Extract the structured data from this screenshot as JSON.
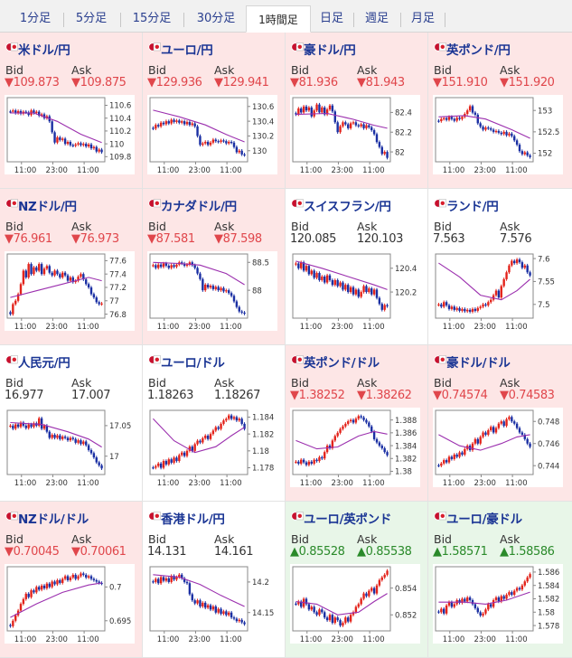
{
  "tabs": [
    {
      "label": "1分足",
      "active": false
    },
    {
      "label": "5分足",
      "active": false
    },
    {
      "label": "15分足",
      "active": false
    },
    {
      "label": "30分足",
      "active": false
    },
    {
      "label": "1時間足",
      "active": true
    },
    {
      "label": "日足",
      "active": false
    },
    {
      "label": "週足",
      "active": false
    },
    {
      "label": "月足",
      "active": false
    }
  ],
  "labels": {
    "bid": "Bid",
    "ask": "Ask"
  },
  "x_ticks": [
    "11:00",
    "23:00",
    "11:00"
  ],
  "cells": [
    {
      "pair": "米ドル/円",
      "flag": "us-jp-flag-icon",
      "direction": "down",
      "bid": "▼109.873",
      "ask": "▼109.875",
      "y_ticks": [
        "110.6",
        "110.4",
        "110.2",
        "110",
        "109.8"
      ],
      "ylim": [
        109.72,
        110.72
      ],
      "close": [
        110.5,
        110.52,
        110.48,
        110.51,
        110.47,
        110.5,
        110.49,
        110.45,
        110.52,
        110.48,
        110.5,
        110.44,
        110.46,
        110.4,
        110.43,
        110.35,
        110.18,
        110.02,
        110.1,
        110.06,
        110.08,
        110.0,
        110.03,
        109.98,
        109.97,
        109.99,
        110.01,
        109.98,
        110.0,
        109.96,
        109.99,
        109.93,
        109.95,
        109.88,
        109.91,
        109.87
      ],
      "ma": [
        [
          0,
          110.48
        ],
        [
          9,
          110.48
        ],
        [
          18,
          110.35
        ],
        [
          27,
          110.15
        ],
        [
          35,
          110.02
        ]
      ]
    },
    {
      "pair": "ユーロ/円",
      "flag": "eu-jp-flag-icon",
      "direction": "down",
      "bid": "▼129.936",
      "ask": "▼129.941",
      "y_ticks": [
        "130.6",
        "130.4",
        "130.2",
        "130"
      ],
      "ylim": [
        129.85,
        130.72
      ],
      "close": [
        130.3,
        130.35,
        130.33,
        130.38,
        130.36,
        130.4,
        130.37,
        130.42,
        130.39,
        130.41,
        130.38,
        130.4,
        130.36,
        130.39,
        130.35,
        130.37,
        130.33,
        130.2,
        130.08,
        130.1,
        130.12,
        130.08,
        130.11,
        130.15,
        130.13,
        130.12,
        130.14,
        130.13,
        130.1,
        130.12,
        130.11,
        130.05,
        129.98,
        130.0,
        129.95,
        129.94
      ],
      "ma": [
        [
          0,
          130.55
        ],
        [
          10,
          130.46
        ],
        [
          20,
          130.35
        ],
        [
          28,
          130.22
        ],
        [
          35,
          130.12
        ]
      ]
    },
    {
      "pair": "豪ドル/円",
      "flag": "au-jp-flag-icon",
      "direction": "down",
      "bid": "▼81.936",
      "ask": "▼81.943",
      "y_ticks": [
        "82.4",
        "82.2",
        "82"
      ],
      "ylim": [
        81.9,
        82.55
      ],
      "close": [
        82.38,
        82.44,
        82.4,
        82.46,
        82.42,
        82.45,
        82.36,
        82.42,
        82.48,
        82.4,
        82.45,
        82.38,
        82.43,
        82.47,
        82.41,
        82.3,
        82.2,
        82.26,
        82.3,
        82.28,
        82.24,
        82.29,
        82.3,
        82.27,
        82.26,
        82.28,
        82.24,
        82.27,
        82.25,
        82.22,
        82.18,
        82.1,
        82.05,
        81.98,
        82.0,
        81.94
      ],
      "ma": [
        [
          0,
          82.38
        ],
        [
          12,
          82.39
        ],
        [
          22,
          82.33
        ],
        [
          30,
          82.27
        ],
        [
          35,
          82.24
        ]
      ]
    },
    {
      "pair": "英ポンド/円",
      "flag": "gb-jp-flag-icon",
      "direction": "down",
      "bid": "▼151.910",
      "ask": "▼151.920",
      "y_ticks": [
        "153",
        "152.5",
        "152"
      ],
      "ylim": [
        151.8,
        153.3
      ],
      "close": [
        152.75,
        152.8,
        152.82,
        152.78,
        152.85,
        152.8,
        152.76,
        152.83,
        152.8,
        152.85,
        152.92,
        153.0,
        153.1,
        152.95,
        152.9,
        152.7,
        152.62,
        152.55,
        152.6,
        152.58,
        152.55,
        152.5,
        152.52,
        152.48,
        152.45,
        152.5,
        152.42,
        152.46,
        152.4,
        152.3,
        152.2,
        152.05,
        151.98,
        152.02,
        151.95,
        151.91
      ],
      "ma": [
        [
          0,
          152.85
        ],
        [
          10,
          152.88
        ],
        [
          18,
          152.8
        ],
        [
          28,
          152.55
        ],
        [
          35,
          152.35
        ]
      ]
    },
    {
      "pair": "NZドル/円",
      "flag": "nz-jp-flag-icon",
      "direction": "down",
      "bid": "▼76.961",
      "ask": "▼76.973",
      "y_ticks": [
        "77.6",
        "77.4",
        "77.2",
        "77",
        "76.8"
      ],
      "ylim": [
        76.74,
        77.7
      ],
      "close": [
        76.8,
        76.95,
        77.0,
        77.1,
        77.25,
        77.45,
        77.35,
        77.55,
        77.4,
        77.5,
        77.45,
        77.55,
        77.4,
        77.48,
        77.52,
        77.42,
        77.38,
        77.45,
        77.4,
        77.35,
        77.42,
        77.38,
        77.3,
        77.35,
        77.28,
        77.3,
        77.36,
        77.4,
        77.32,
        77.25,
        77.2,
        77.1,
        77.05,
        76.98,
        76.95,
        76.96
      ],
      "ma": [
        [
          0,
          77.05
        ],
        [
          10,
          77.15
        ],
        [
          20,
          77.25
        ],
        [
          30,
          77.35
        ],
        [
          35,
          77.3
        ]
      ]
    },
    {
      "pair": "カナダドル/円",
      "flag": "ca-jp-flag-icon",
      "direction": "down",
      "bid": "▼87.581",
      "ask": "▼87.598",
      "y_ticks": [
        "88.5",
        "88"
      ],
      "ylim": [
        87.5,
        88.65
      ],
      "close": [
        88.45,
        88.4,
        88.46,
        88.42,
        88.48,
        88.44,
        88.4,
        88.45,
        88.42,
        88.46,
        88.5,
        88.48,
        88.44,
        88.46,
        88.5,
        88.45,
        88.4,
        88.3,
        88.2,
        88.0,
        88.1,
        88.05,
        88.08,
        88.02,
        88.06,
        88.0,
        88.04,
        87.98,
        88.0,
        87.95,
        87.9,
        87.8,
        87.7,
        87.62,
        87.6,
        87.58
      ],
      "ma": [
        [
          0,
          88.5
        ],
        [
          10,
          88.48
        ],
        [
          18,
          88.45
        ],
        [
          28,
          88.3
        ],
        [
          35,
          88.1
        ]
      ]
    },
    {
      "pair": "スイスフラン/円",
      "flag": "ch-jp-flag-icon",
      "direction": "flat",
      "bid": "120.085",
      "ask": "120.103",
      "y_ticks": [
        "120.4",
        "120.2"
      ],
      "ylim": [
        119.98,
        120.52
      ],
      "close": [
        120.44,
        120.4,
        120.45,
        120.38,
        120.42,
        120.35,
        120.38,
        120.32,
        120.36,
        120.3,
        120.33,
        120.28,
        120.34,
        120.3,
        120.26,
        120.3,
        120.25,
        120.28,
        120.22,
        120.26,
        120.2,
        120.24,
        120.18,
        120.22,
        120.16,
        120.2,
        120.25,
        120.2,
        120.23,
        120.18,
        120.22,
        120.15,
        120.1,
        120.05,
        120.09,
        120.08
      ],
      "ma": [
        [
          0,
          120.46
        ],
        [
          10,
          120.4
        ],
        [
          20,
          120.33
        ],
        [
          30,
          120.26
        ],
        [
          35,
          120.22
        ]
      ]
    },
    {
      "pair": "ランド/円",
      "flag": "za-jp-flag-icon",
      "direction": "flat",
      "bid": "7.563",
      "ask": "7.576",
      "y_ticks": [
        "7.6",
        "7.55",
        "7.5"
      ],
      "ylim": [
        7.47,
        7.61
      ],
      "close": [
        7.5,
        7.495,
        7.505,
        7.498,
        7.49,
        7.495,
        7.488,
        7.492,
        7.486,
        7.49,
        7.485,
        7.488,
        7.484,
        7.49,
        7.486,
        7.492,
        7.495,
        7.5,
        7.498,
        7.505,
        7.51,
        7.52,
        7.53,
        7.515,
        7.54,
        7.555,
        7.57,
        7.585,
        7.595,
        7.59,
        7.598,
        7.592,
        7.58,
        7.585,
        7.57,
        7.563
      ],
      "ma": [
        [
          0,
          7.59
        ],
        [
          8,
          7.56
        ],
        [
          16,
          7.52
        ],
        [
          24,
          7.51
        ],
        [
          30,
          7.53
        ],
        [
          35,
          7.555
        ]
      ]
    },
    {
      "pair": "人民元/円",
      "flag": "cn-jp-flag-icon",
      "direction": "flat",
      "bid": "16.977",
      "ask": "17.007",
      "y_ticks": [
        "17.05",
        "17"
      ],
      "ylim": [
        16.97,
        17.075
      ],
      "close": [
        17.05,
        17.045,
        17.052,
        17.048,
        17.055,
        17.05,
        17.046,
        17.052,
        17.048,
        17.054,
        17.05,
        17.062,
        17.045,
        17.05,
        17.04,
        17.03,
        17.035,
        17.03,
        17.034,
        17.028,
        17.032,
        17.03,
        17.026,
        17.03,
        17.028,
        17.022,
        17.026,
        17.02,
        17.024,
        17.018,
        17.01,
        17.005,
        16.998,
        16.99,
        16.985,
        16.98
      ],
      "ma": [
        [
          0,
          17.055
        ],
        [
          12,
          17.052
        ],
        [
          22,
          17.04
        ],
        [
          30,
          17.028
        ],
        [
          35,
          17.015
        ]
      ]
    },
    {
      "pair": "ユーロ/ドル",
      "flag": "eu-us-flag-icon",
      "direction": "flat",
      "bid": "1.18263",
      "ask": "1.18267",
      "y_ticks": [
        "1.184",
        "1.182",
        "1.18",
        "1.178"
      ],
      "ylim": [
        1.1772,
        1.1848
      ],
      "close": [
        1.178,
        1.1782,
        1.1785,
        1.178,
        1.1788,
        1.1784,
        1.179,
        1.1786,
        1.1792,
        1.1788,
        1.1795,
        1.1798,
        1.1794,
        1.18,
        1.1805,
        1.18,
        1.1808,
        1.1812,
        1.181,
        1.1815,
        1.1818,
        1.1814,
        1.182,
        1.1824,
        1.1828,
        1.1826,
        1.1832,
        1.1836,
        1.1838,
        1.1842,
        1.1838,
        1.184,
        1.1836,
        1.1838,
        1.1832,
        1.1826
      ],
      "ma": [
        [
          0,
          1.1838
        ],
        [
          8,
          1.1812
        ],
        [
          16,
          1.1798
        ],
        [
          24,
          1.1805
        ],
        [
          30,
          1.1818
        ],
        [
          35,
          1.1828
        ]
      ]
    },
    {
      "pair": "英ポンド/ドル",
      "flag": "gb-us-flag-icon",
      "direction": "down",
      "bid": "▼1.38252",
      "ask": "▼1.38262",
      "y_ticks": [
        "1.388",
        "1.386",
        "1.384",
        "1.382",
        "1.38"
      ],
      "ylim": [
        1.3795,
        1.3895
      ],
      "close": [
        1.3815,
        1.3812,
        1.3818,
        1.3814,
        1.381,
        1.3815,
        1.3812,
        1.3818,
        1.3816,
        1.3822,
        1.382,
        1.383,
        1.384,
        1.3836,
        1.3848,
        1.3855,
        1.386,
        1.3866,
        1.387,
        1.3874,
        1.3878,
        1.388,
        1.3876,
        1.3882,
        1.3886,
        1.3884,
        1.388,
        1.3876,
        1.387,
        1.3862,
        1.385,
        1.3845,
        1.384,
        1.3836,
        1.383,
        1.3825
      ],
      "ma": [
        [
          0,
          1.3848
        ],
        [
          8,
          1.3835
        ],
        [
          16,
          1.3838
        ],
        [
          24,
          1.3855
        ],
        [
          30,
          1.3862
        ],
        [
          35,
          1.3858
        ]
      ]
    },
    {
      "pair": "豪ドル/ドル",
      "flag": "au-us-flag-icon",
      "direction": "down",
      "bid": "▼0.74574",
      "ask": "▼0.74583",
      "y_ticks": [
        "0.748",
        "0.746",
        "0.744"
      ],
      "ylim": [
        0.7432,
        0.749
      ],
      "close": [
        0.744,
        0.7442,
        0.7445,
        0.7443,
        0.7448,
        0.7446,
        0.745,
        0.7448,
        0.7452,
        0.745,
        0.7455,
        0.7458,
        0.7454,
        0.746,
        0.7464,
        0.746,
        0.7466,
        0.747,
        0.7468,
        0.7472,
        0.7475,
        0.747,
        0.7474,
        0.7478,
        0.748,
        0.7476,
        0.7482,
        0.7484,
        0.748,
        0.7478,
        0.7474,
        0.747,
        0.7468,
        0.7464,
        0.746,
        0.7457
      ],
      "ma": [
        [
          0,
          0.7468
        ],
        [
          8,
          0.7458
        ],
        [
          16,
          0.7454
        ],
        [
          24,
          0.746
        ],
        [
          30,
          0.7466
        ],
        [
          35,
          0.7468
        ]
      ]
    },
    {
      "pair": "NZドル/ドル",
      "flag": "nz-us-flag-icon",
      "direction": "down",
      "bid": "▼0.70045",
      "ask": "▼0.70061",
      "y_ticks": [
        "0.7",
        "0.695"
      ],
      "ylim": [
        0.6935,
        0.703
      ],
      "close": [
        0.6942,
        0.695,
        0.6958,
        0.6965,
        0.6975,
        0.6982,
        0.699,
        0.6985,
        0.6995,
        0.6992,
        0.7,
        0.6996,
        0.7002,
        0.6998,
        0.7005,
        0.7,
        0.7008,
        0.7004,
        0.701,
        0.7006,
        0.7012,
        0.7016,
        0.701,
        0.7014,
        0.7018,
        0.7012,
        0.7016,
        0.702,
        0.7018,
        0.7014,
        0.7016,
        0.7012,
        0.701,
        0.7008,
        0.7006,
        0.7005
      ],
      "ma": [
        [
          0,
          0.6955
        ],
        [
          10,
          0.6975
        ],
        [
          20,
          0.6992
        ],
        [
          30,
          0.7003
        ],
        [
          35,
          0.7006
        ]
      ]
    },
    {
      "pair": "香港ドル/円",
      "flag": "hk-jp-flag-icon",
      "direction": "flat",
      "bid": "14.131",
      "ask": "14.161",
      "y_ticks": [
        "14.2",
        "14.15"
      ],
      "ylim": [
        14.12,
        14.225
      ],
      "close": [
        14.2,
        14.205,
        14.198,
        14.208,
        14.202,
        14.206,
        14.2,
        14.21,
        14.204,
        14.208,
        14.212,
        14.206,
        14.2,
        14.198,
        14.18,
        14.17,
        14.165,
        14.17,
        14.16,
        14.166,
        14.158,
        14.162,
        14.155,
        14.16,
        14.15,
        14.156,
        14.148,
        14.152,
        14.146,
        14.15,
        14.142,
        14.14,
        14.136,
        14.138,
        14.134,
        14.131
      ],
      "ma": [
        [
          0,
          14.212
        ],
        [
          10,
          14.208
        ],
        [
          18,
          14.196
        ],
        [
          26,
          14.178
        ],
        [
          35,
          14.16
        ]
      ]
    },
    {
      "pair": "ユーロ/英ポンド",
      "flag": "eu-gb-flag-icon",
      "direction": "up",
      "bid": "▲0.85528",
      "ask": "▲0.85538",
      "y_ticks": [
        "0.854",
        "0.852"
      ],
      "ylim": [
        0.8508,
        0.8556
      ],
      "close": [
        0.8528,
        0.853,
        0.8526,
        0.8532,
        0.8528,
        0.8524,
        0.8526,
        0.8522,
        0.852,
        0.8524,
        0.8522,
        0.8518,
        0.8516,
        0.852,
        0.8514,
        0.8518,
        0.8516,
        0.8512,
        0.8514,
        0.8518,
        0.8515,
        0.852,
        0.8522,
        0.8526,
        0.8528,
        0.8532,
        0.8536,
        0.8534,
        0.8538,
        0.854,
        0.8536,
        0.8542,
        0.8546,
        0.8548,
        0.855,
        0.8553
      ],
      "ma": [
        [
          0,
          0.853
        ],
        [
          8,
          0.8528
        ],
        [
          16,
          0.852
        ],
        [
          24,
          0.8522
        ],
        [
          30,
          0.853
        ],
        [
          35,
          0.8536
        ]
      ]
    },
    {
      "pair": "ユーロ/豪ドル",
      "flag": "eu-au-flag-icon",
      "direction": "up",
      "bid": "▲1.58571",
      "ask": "▲1.58586",
      "y_ticks": [
        "1.586",
        "1.584",
        "1.582",
        "1.58",
        "1.578"
      ],
      "ylim": [
        1.5772,
        1.5868
      ],
      "close": [
        1.58,
        1.5805,
        1.5798,
        1.581,
        1.5815,
        1.5808,
        1.5812,
        1.5818,
        1.5814,
        1.582,
        1.5816,
        1.5822,
        1.5818,
        1.5812,
        1.5806,
        1.58,
        1.5795,
        1.5798,
        1.5804,
        1.5812,
        1.5808,
        1.5818,
        1.5822,
        1.5816,
        1.5824,
        1.582,
        1.5826,
        1.583,
        1.5826,
        1.5832,
        1.5836,
        1.5834,
        1.584,
        1.5846,
        1.5852,
        1.5857
      ],
      "ma": [
        [
          0,
          1.5815
        ],
        [
          10,
          1.5815
        ],
        [
          18,
          1.5812
        ],
        [
          26,
          1.5818
        ],
        [
          35,
          1.583
        ]
      ]
    }
  ]
}
